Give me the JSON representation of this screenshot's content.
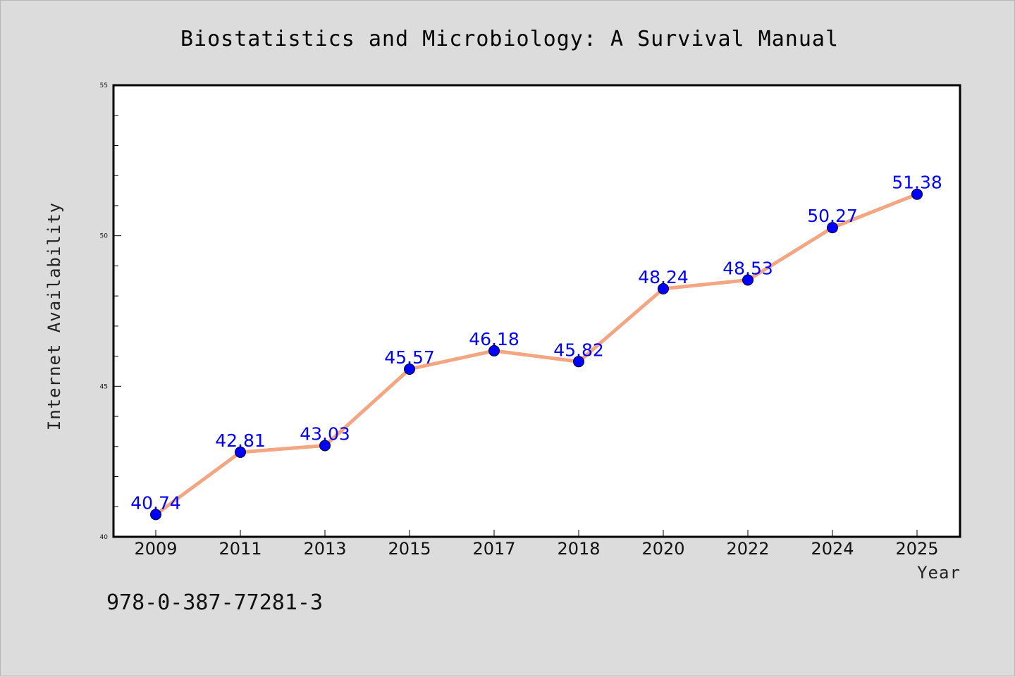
{
  "chart_data": {
    "type": "line",
    "title": "Biostatistics and Microbiology: A Survival Manual",
    "xlabel": "Year",
    "ylabel": "Internet Availability",
    "categories": [
      "2009",
      "2011",
      "2013",
      "2015",
      "2017",
      "2018",
      "2020",
      "2022",
      "2024",
      "2025"
    ],
    "series": [
      {
        "values": [
          40.74,
          42.81,
          43.03,
          45.57,
          46.18,
          45.82,
          48.24,
          48.53,
          50.27,
          51.38
        ],
        "labels": [
          "40.74",
          "42.81",
          "43.03",
          "45.57",
          "46.18",
          "45.82",
          "48.24",
          "48.53",
          "50.27",
          "51.38"
        ]
      }
    ],
    "ylim": [
      40,
      55
    ],
    "yticks": [
      40,
      45,
      50,
      55
    ],
    "ytick_labels": [
      "40",
      "45",
      "50",
      "55"
    ],
    "y_minor_step": 1,
    "grid": false,
    "legend": "none",
    "line_color": "#f4a582",
    "marker_color": "#0000ff",
    "label_color": "#0000ff"
  },
  "annotation": "978-0-387-77281-3"
}
